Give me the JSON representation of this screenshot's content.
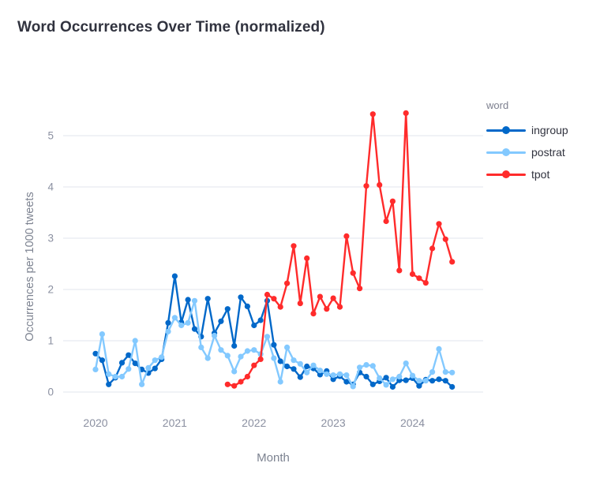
{
  "title": "Word Occurrences Over Time (normalized)",
  "legend": {
    "title": "word"
  },
  "colors": {
    "background": "#ffffff",
    "grid": "#e6eaf1",
    "axis_text": "#8b90a1",
    "axis_title": "#7d8391",
    "chart_title": "#31333F"
  },
  "chart_data": {
    "type": "line",
    "title": "Word Occurrences Over Time (normalized)",
    "xlabel": "Month",
    "ylabel": "Occurrences per 1000 tweets",
    "legend_title": "word",
    "legend_position": "right",
    "grid": "horizontal",
    "x_unit": "month",
    "x_range": [
      "2020-01",
      "2024-07"
    ],
    "x_tick_labels": [
      "2020",
      "2021",
      "2022",
      "2023",
      "2024"
    ],
    "x_tick_month_indices": [
      0,
      12,
      24,
      36,
      48
    ],
    "y_ticks": [
      0,
      1,
      2,
      3,
      4,
      5
    ],
    "ylim": [
      -0.15,
      5.6
    ],
    "series": [
      {
        "name": "ingroup",
        "color": "#0068C9",
        "start_month": "2020-01",
        "start_index": 0,
        "values": [
          0.75,
          0.62,
          0.15,
          0.28,
          0.57,
          0.72,
          0.56,
          0.44,
          0.37,
          0.46,
          0.64,
          1.35,
          2.26,
          1.36,
          1.8,
          1.23,
          1.08,
          1.82,
          1.15,
          1.38,
          1.62,
          0.9,
          1.85,
          1.67,
          1.3,
          1.4,
          1.78,
          0.92,
          0.6,
          0.5,
          0.45,
          0.29,
          0.5,
          0.46,
          0.34,
          0.41,
          0.25,
          0.31,
          0.2,
          0.15,
          0.38,
          0.3,
          0.15,
          0.21,
          0.28,
          0.1,
          0.23,
          0.23,
          0.27,
          0.12,
          0.24,
          0.22,
          0.25,
          0.22,
          0.1
        ]
      },
      {
        "name": "postrat",
        "color": "#83C9FF",
        "start_month": "2020-01",
        "start_index": 0,
        "values": [
          0.44,
          1.13,
          0.35,
          0.3,
          0.3,
          0.45,
          1.0,
          0.15,
          0.47,
          0.62,
          0.68,
          1.18,
          1.45,
          1.3,
          1.35,
          1.78,
          0.87,
          0.66,
          1.1,
          0.82,
          0.71,
          0.4,
          0.69,
          0.8,
          0.82,
          0.74,
          1.08,
          0.66,
          0.2,
          0.87,
          0.62,
          0.55,
          0.38,
          0.52,
          0.42,
          0.35,
          0.33,
          0.35,
          0.33,
          0.11,
          0.48,
          0.53,
          0.51,
          0.27,
          0.14,
          0.25,
          0.3,
          0.56,
          0.32,
          0.22,
          0.22,
          0.39,
          0.84,
          0.39,
          0.38
        ]
      },
      {
        "name": "tpot",
        "color": "#FF2B2B",
        "start_month": "2021-09",
        "start_index": 20,
        "values": [
          0.15,
          0.12,
          0.2,
          0.3,
          0.52,
          0.64,
          1.9,
          1.82,
          1.66,
          2.12,
          2.85,
          1.73,
          2.61,
          1.53,
          1.86,
          1.62,
          1.83,
          1.66,
          3.04,
          2.32,
          2.02,
          4.02,
          5.42,
          4.04,
          3.33,
          3.72,
          2.37,
          5.44,
          2.3,
          2.22,
          2.13,
          2.8,
          3.28,
          2.98,
          2.54
        ]
      }
    ]
  }
}
